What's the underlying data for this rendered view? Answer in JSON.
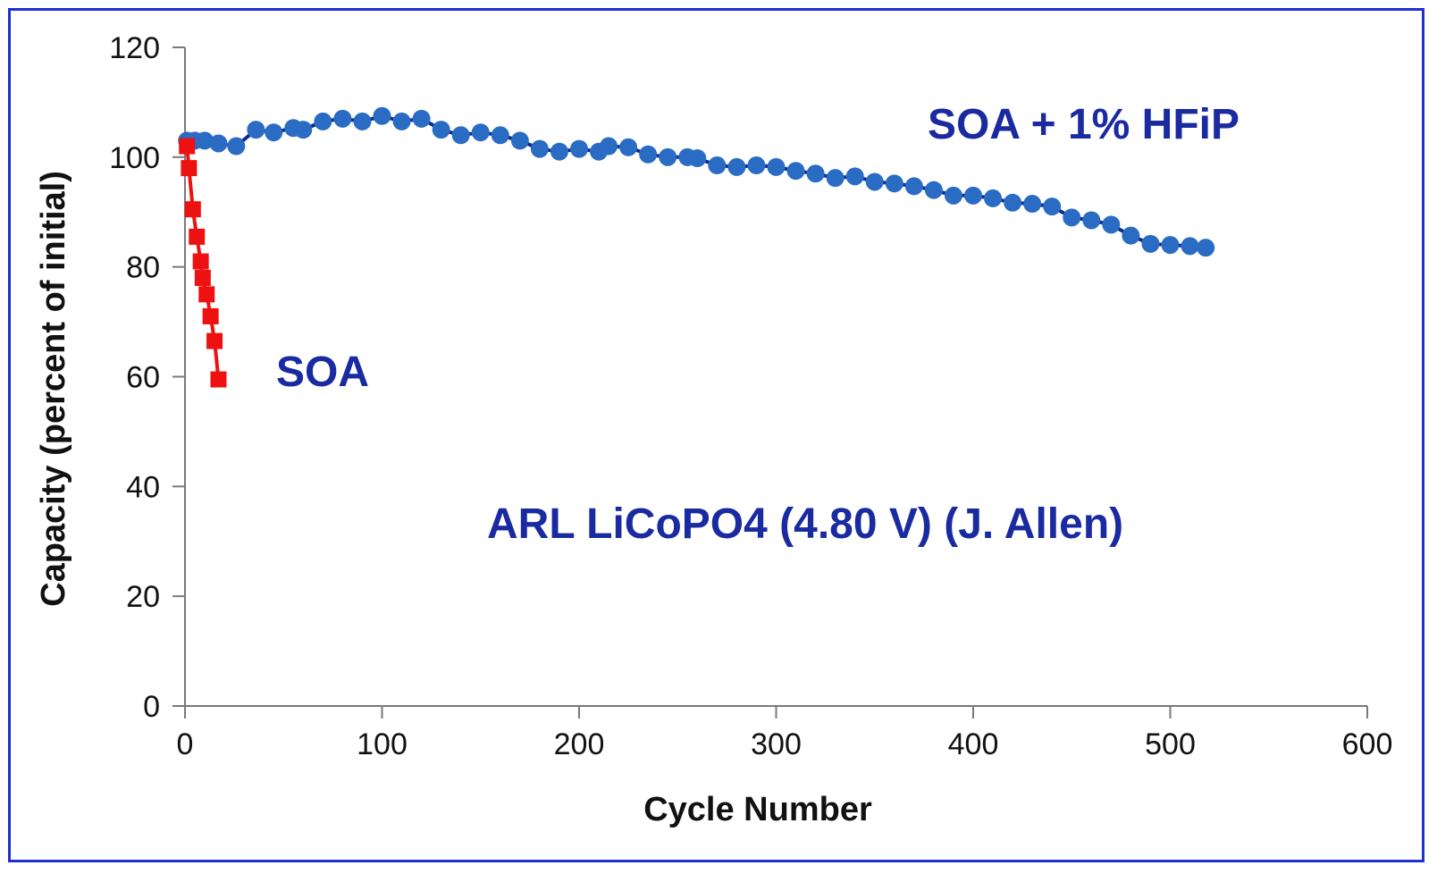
{
  "chart_data": {
    "type": "line",
    "xlabel": "Cycle Number",
    "ylabel": "Capacity (percent of initial)",
    "xlim": [
      0,
      600
    ],
    "ylim": [
      0,
      120
    ],
    "x_ticks": [
      "0",
      "100",
      "200",
      "300",
      "400",
      "500",
      "600"
    ],
    "y_ticks": [
      "0",
      "20",
      "40",
      "60",
      "80",
      "100",
      "120"
    ],
    "grid": false,
    "annotations": {
      "series_hfip": "SOA + 1% HFiP",
      "series_soa": "SOA",
      "cell": "ARL LiCoPO4 (4.80 V) (J. Allen)"
    },
    "series": [
      {
        "key": "hfip",
        "color": "#2a6cc4",
        "line_color": "#0d2a8c",
        "marker": "circle",
        "points": [
          [
            1,
            103
          ],
          [
            5,
            103
          ],
          [
            10,
            103
          ],
          [
            17,
            102.5
          ],
          [
            26,
            102
          ],
          [
            36,
            105
          ],
          [
            45,
            104.5
          ],
          [
            55,
            105.3
          ],
          [
            60,
            105
          ],
          [
            70,
            106.5
          ],
          [
            80,
            107
          ],
          [
            90,
            106.5
          ],
          [
            100,
            107.5
          ],
          [
            110,
            106.5
          ],
          [
            120,
            107
          ],
          [
            130,
            105
          ],
          [
            140,
            104
          ],
          [
            150,
            104.5
          ],
          [
            160,
            104
          ],
          [
            170,
            103
          ],
          [
            180,
            101.5
          ],
          [
            190,
            101
          ],
          [
            200,
            101.5
          ],
          [
            210,
            101
          ],
          [
            215,
            102
          ],
          [
            225,
            101.8
          ],
          [
            235,
            100.5
          ],
          [
            245,
            100
          ],
          [
            255,
            100
          ],
          [
            260,
            99.8
          ],
          [
            270,
            98.5
          ],
          [
            280,
            98.2
          ],
          [
            290,
            98.5
          ],
          [
            300,
            98.2
          ],
          [
            310,
            97.5
          ],
          [
            320,
            97
          ],
          [
            330,
            96.2
          ],
          [
            340,
            96.5
          ],
          [
            350,
            95.5
          ],
          [
            360,
            95.2
          ],
          [
            370,
            94.7
          ],
          [
            380,
            94
          ],
          [
            390,
            93
          ],
          [
            400,
            93
          ],
          [
            410,
            92.5
          ],
          [
            420,
            91.7
          ],
          [
            430,
            91.5
          ],
          [
            440,
            91
          ],
          [
            450,
            89
          ],
          [
            460,
            88.5
          ],
          [
            470,
            87.7
          ],
          [
            480,
            85.7
          ],
          [
            490,
            84.2
          ],
          [
            500,
            84
          ],
          [
            510,
            83.8
          ],
          [
            518,
            83.5
          ]
        ]
      },
      {
        "key": "soa",
        "color": "#ee1111",
        "line_color": "#ee1111",
        "marker": "square",
        "points": [
          [
            1,
            102
          ],
          [
            2,
            98
          ],
          [
            4,
            90.5
          ],
          [
            6,
            85.5
          ],
          [
            8,
            81
          ],
          [
            9,
            78
          ],
          [
            11,
            75
          ],
          [
            13,
            71
          ],
          [
            15,
            66.5
          ],
          [
            17,
            59.5
          ]
        ]
      }
    ]
  }
}
